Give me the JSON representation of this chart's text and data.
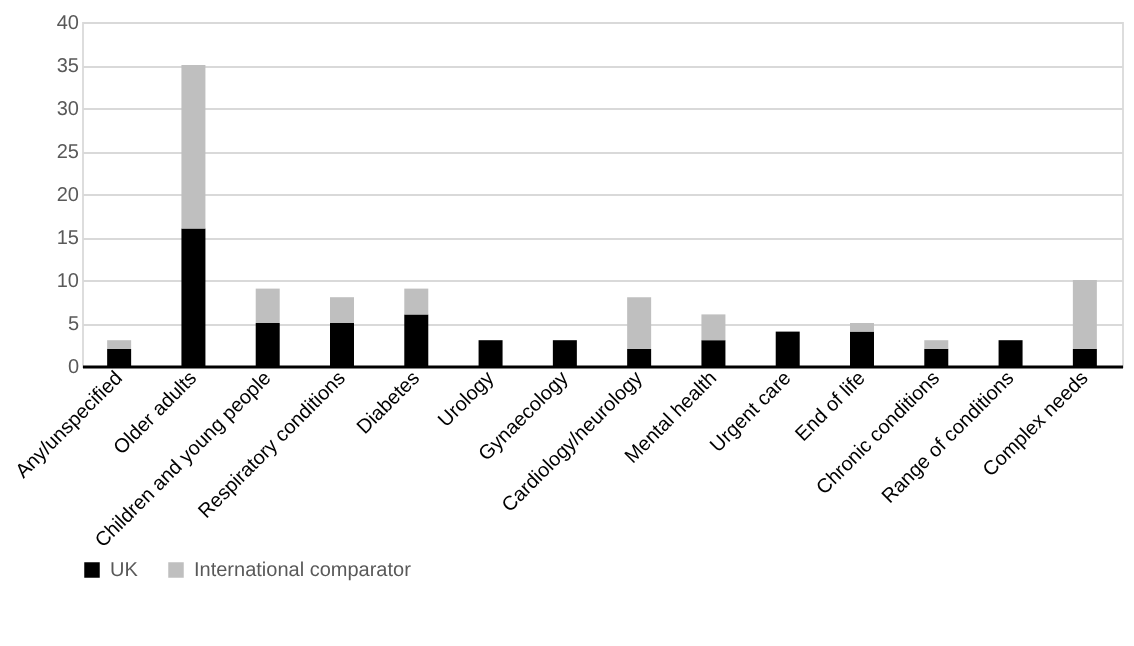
{
  "chart_data": {
    "type": "bar",
    "stacked": true,
    "categories": [
      "Any/unspecified",
      "Older adults",
      "Children and young people",
      "Respiratory conditions",
      "Diabetes",
      "Urology",
      "Gynaecology",
      "Cardiology/neurology",
      "Mental health",
      "Urgent care",
      "End of life",
      "Chronic conditions",
      "Range of conditions",
      "Complex needs"
    ],
    "series": [
      {
        "name": "UK",
        "color": "#000000",
        "values": [
          2,
          16,
          5,
          5,
          6,
          3,
          3,
          2,
          3,
          4,
          4,
          2,
          3,
          2
        ]
      },
      {
        "name": "International comparator",
        "color": "#bfbfbf",
        "values": [
          1,
          19,
          4,
          3,
          3,
          0,
          0,
          6,
          3,
          0,
          1,
          1,
          0,
          8
        ]
      }
    ],
    "ylim": [
      0,
      40
    ],
    "yticks": [
      0,
      5,
      10,
      15,
      20,
      25,
      30,
      35,
      40
    ],
    "grid": "y",
    "legend": "bottom"
  }
}
